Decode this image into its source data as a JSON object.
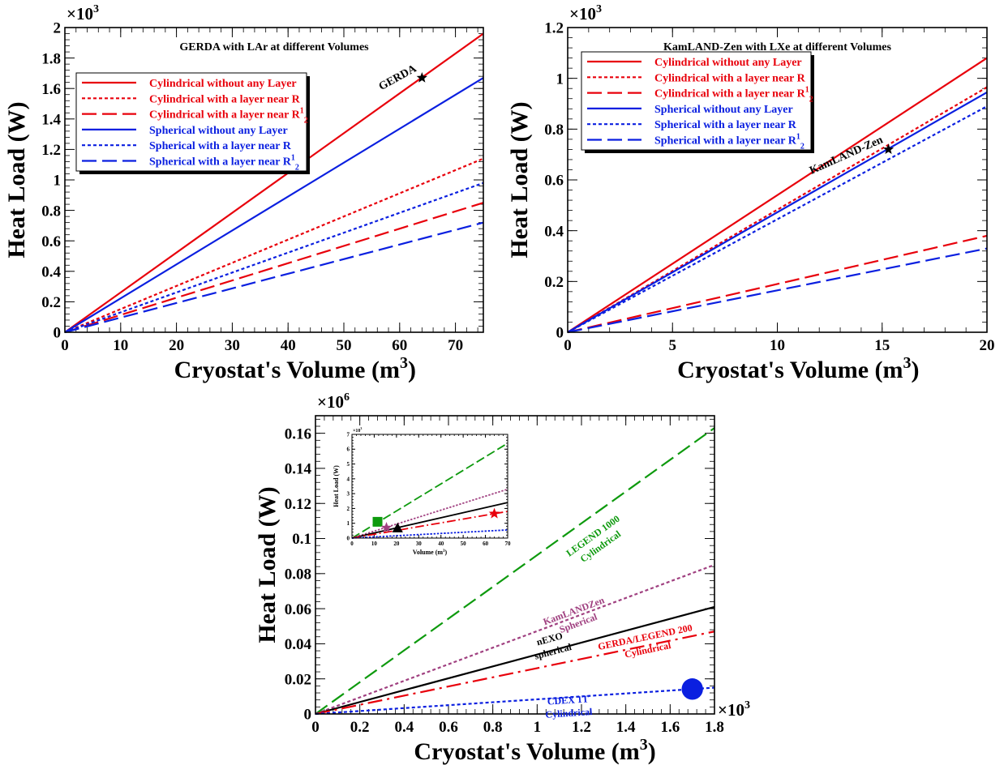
{
  "chart_data": [
    {
      "type": "line",
      "title": "GERDA with LAr at different Volumes",
      "xlabel": "Cryostat's Volume (m",
      "xlabel_sup": "3",
      "xlabel_close": ")",
      "ylabel": "Heat Load (W)",
      "y_multiplier": "×10",
      "y_multiplier_exp": "3",
      "xlim": [
        0,
        75
      ],
      "ylim": [
        0,
        2
      ],
      "xticks": [
        0,
        10,
        20,
        30,
        40,
        50,
        60,
        70
      ],
      "xtick_labels": [
        "0",
        "10",
        "20",
        "30",
        "40",
        "50",
        "60",
        "70"
      ],
      "yticks": [
        0,
        0.2,
        0.4,
        0.6,
        0.8,
        1.0,
        1.2,
        1.4,
        1.6,
        1.8,
        2.0
      ],
      "ytick_labels": [
        "0",
        "0.2",
        "0.4",
        "0.6",
        "0.8",
        "1",
        "1.2",
        "1.4",
        "1.6",
        "1.8",
        "2"
      ],
      "series": [
        {
          "name": "Cylindrical without any Layer",
          "color": "#e8000b",
          "dash": "solid",
          "x": [
            0,
            75
          ],
          "values": [
            0,
            1.96
          ]
        },
        {
          "name": "Cylindrical with a layer near R",
          "color": "#e8000b",
          "dash": "dot",
          "x": [
            0,
            75
          ],
          "values": [
            0,
            1.14
          ]
        },
        {
          "name": "Cylindrical with a layer near R",
          "name_sup": "1",
          "name_sub": "2",
          "color": "#e8000b",
          "dash": "dash",
          "x": [
            0,
            75
          ],
          "values": [
            0,
            0.85
          ]
        },
        {
          "name": "Spherical without any Layer",
          "color": "#0a1fe0",
          "dash": "solid",
          "x": [
            0,
            75
          ],
          "values": [
            0,
            1.67
          ]
        },
        {
          "name": "Spherical with a layer near R",
          "color": "#0a1fe0",
          "dash": "dot",
          "x": [
            0,
            75
          ],
          "values": [
            0,
            0.98
          ]
        },
        {
          "name": "Spherical with a layer near R",
          "name_sup": "1",
          "name_sub": "2",
          "color": "#0a1fe0",
          "dash": "dash",
          "x": [
            0,
            75
          ],
          "values": [
            0,
            0.72
          ]
        }
      ],
      "legend_position": "upper-left",
      "annotations": [
        {
          "text": "GERDA",
          "x": 64,
          "y": 1.67,
          "marker": "star",
          "color": "#000000"
        }
      ]
    },
    {
      "type": "line",
      "title": "KamLAND-Zen with LXe at different Volumes",
      "xlabel": "Cryostat's Volume (m",
      "xlabel_sup": "3",
      "xlabel_close": ")",
      "ylabel": "Heat Load (W)",
      "y_multiplier": "×10",
      "y_multiplier_exp": "3",
      "xlim": [
        0,
        20
      ],
      "ylim": [
        0,
        1.2
      ],
      "xticks": [
        0,
        5,
        10,
        15,
        20
      ],
      "xtick_labels": [
        "0",
        "5",
        "10",
        "15",
        "20"
      ],
      "yticks": [
        0,
        0.2,
        0.4,
        0.6,
        0.8,
        1.0,
        1.2
      ],
      "ytick_labels": [
        "0",
        "0.2",
        "0.4",
        "0.6",
        "0.8",
        "1",
        "1.2"
      ],
      "series": [
        {
          "name": "Cylindrical without any Layer",
          "color": "#e8000b",
          "dash": "solid",
          "x": [
            0,
            20
          ],
          "values": [
            0,
            1.08
          ]
        },
        {
          "name": "Cylindrical with a layer near R",
          "color": "#e8000b",
          "dash": "dot",
          "x": [
            0,
            20
          ],
          "values": [
            0,
            0.965
          ]
        },
        {
          "name": "Cylindrical with a layer near R",
          "name_sup": "1",
          "name_sub": "2",
          "color": "#e8000b",
          "dash": "dash",
          "x": [
            0,
            20
          ],
          "values": [
            0,
            0.38
          ]
        },
        {
          "name": "Spherical without any Layer",
          "color": "#0a1fe0",
          "dash": "solid",
          "x": [
            0,
            20
          ],
          "values": [
            0,
            0.945
          ]
        },
        {
          "name": "Spherical with a layer near R",
          "color": "#0a1fe0",
          "dash": "dot",
          "x": [
            0,
            20
          ],
          "values": [
            0,
            0.89
          ]
        },
        {
          "name": "Spherical with a layer near R",
          "name_sup": "1",
          "name_sub": "2",
          "color": "#0a1fe0",
          "dash": "dash",
          "x": [
            0,
            20
          ],
          "values": [
            0,
            0.33
          ]
        }
      ],
      "legend_position": "upper-left",
      "annotations": [
        {
          "text": "KamLAND-Zen",
          "x": 15.3,
          "y": 0.72,
          "marker": "star",
          "color": "#000000"
        }
      ]
    },
    {
      "type": "line",
      "title": "",
      "xlabel": "Cryostat's Volume (m",
      "xlabel_sup": "3",
      "xlabel_close": ")",
      "ylabel": "Heat Load (W)",
      "y_multiplier": "×10",
      "y_multiplier_exp": "6",
      "x_multiplier": "×10",
      "x_multiplier_exp": "3",
      "xlim": [
        0,
        1.8
      ],
      "ylim": [
        0,
        0.17
      ],
      "xticks": [
        0,
        0.2,
        0.4,
        0.6,
        0.8,
        1.0,
        1.2,
        1.4,
        1.6,
        1.8
      ],
      "xtick_labels": [
        "0",
        "0.2",
        "0.4",
        "0.6",
        "0.8",
        "1",
        "1.2",
        "1.4",
        "1.6",
        "1.8"
      ],
      "yticks": [
        0,
        0.02,
        0.04,
        0.06,
        0.08,
        0.1,
        0.12,
        0.14,
        0.16
      ],
      "ytick_labels": [
        "0",
        "0.02",
        "0.04",
        "0.06",
        "0.08",
        "0.1",
        "0.12",
        "0.14",
        "0.16"
      ],
      "series": [
        {
          "name": "LEGEND 1000 Cylindrical",
          "color": "#0e9a0e",
          "dash": "dash",
          "x": [
            0,
            1.8
          ],
          "values": [
            0,
            0.163
          ]
        },
        {
          "name": "KamLANDZen Spherical",
          "color": "#a04080",
          "dash": "dot",
          "x": [
            0,
            1.8
          ],
          "values": [
            0,
            0.085
          ]
        },
        {
          "name": "nEXO spherical",
          "color": "#000000",
          "dash": "solid",
          "x": [
            0,
            1.8
          ],
          "values": [
            0,
            0.061
          ]
        },
        {
          "name": "GERDA/LEGEND 200 Cylindrical",
          "color": "#e8000b",
          "dash": "dashdot",
          "x": [
            0,
            1.8
          ],
          "values": [
            0,
            0.047
          ]
        },
        {
          "name": "CDEX 1T Cylindrical",
          "color": "#0a1fe0",
          "dash": "dot",
          "x": [
            0,
            1.8
          ],
          "values": [
            0,
            0.015
          ]
        }
      ],
      "labels": [
        {
          "lines": [
            "LEGEND 1000",
            "Cylindrical"
          ],
          "color": "#0e9a0e",
          "x": 1.26,
          "y": 0.1
        },
        {
          "lines": [
            "KamLANDZen",
            "Spherical"
          ],
          "color": "#a04080",
          "x": 1.17,
          "y": 0.057
        },
        {
          "lines": [
            "nEXO",
            "spherical"
          ],
          "color": "#000000",
          "x": 1.06,
          "y": 0.041
        },
        {
          "lines": [
            "GERDA/LEGEND 200",
            "Cylindrical"
          ],
          "color": "#e8000b",
          "x": 1.49,
          "y": 0.042
        },
        {
          "lines": [
            "CDEX 1T",
            "Cylindrical"
          ],
          "color": "#0a1fe0",
          "x": 1.14,
          "y": 0.006
        }
      ],
      "markers": [
        {
          "name": "CDEX 1T",
          "x": 1.7,
          "y": 0.0142,
          "shape": "circle",
          "color": "#0a1fe0"
        }
      ],
      "inset": {
        "xlabel": "Volume (m",
        "xlabel_sup": "3",
        "xlabel_close": ")",
        "ylabel": "Heat Load (W)",
        "y_multiplier": "×10",
        "y_multiplier_exp": "3",
        "xlim": [
          0,
          70
        ],
        "ylim": [
          0,
          7
        ],
        "xticks": [
          0,
          10,
          20,
          30,
          40,
          50,
          60,
          70
        ],
        "xtick_labels": [
          "0",
          "10",
          "20",
          "30",
          "40",
          "50",
          "60",
          "70"
        ],
        "yticks": [
          0,
          1,
          2,
          3,
          4,
          5,
          6,
          7
        ],
        "ytick_labels": [
          "0",
          "1",
          "2",
          "3",
          "4",
          "5",
          "6",
          "7"
        ],
        "series": [
          {
            "color": "#0e9a0e",
            "dash": "dash",
            "x": [
              0,
              70
            ],
            "values": [
              0,
              6.4
            ]
          },
          {
            "color": "#a04080",
            "dash": "dot",
            "x": [
              0,
              70
            ],
            "values": [
              0,
              3.3
            ]
          },
          {
            "color": "#000000",
            "dash": "solid",
            "x": [
              0,
              70
            ],
            "values": [
              0,
              2.4
            ]
          },
          {
            "color": "#e8000b",
            "dash": "dashdot",
            "x": [
              0,
              70
            ],
            "values": [
              0,
              1.8
            ]
          },
          {
            "color": "#0a1fe0",
            "dash": "dot",
            "x": [
              0,
              70
            ],
            "values": [
              0,
              0.55
            ]
          }
        ],
        "markers": [
          {
            "x": 11.5,
            "y": 1.1,
            "shape": "square",
            "color": "#0e9a0e"
          },
          {
            "x": 15.5,
            "y": 0.7,
            "shape": "star",
            "color": "#a04080"
          },
          {
            "x": 20.5,
            "y": 0.65,
            "shape": "triangle",
            "color": "#000000"
          },
          {
            "x": 64,
            "y": 1.65,
            "shape": "star",
            "color": "#e8000b"
          }
        ]
      }
    }
  ]
}
